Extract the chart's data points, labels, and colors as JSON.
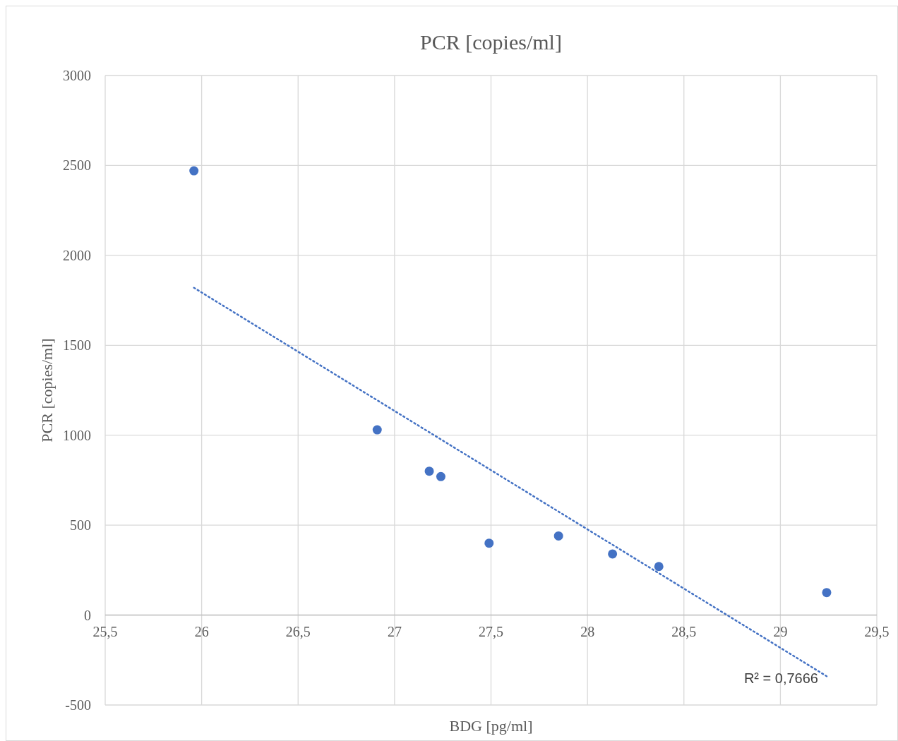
{
  "chart_data": {
    "type": "scatter",
    "title": "PCR [copies/ml]",
    "xlabel": "BDG [pg/ml]",
    "ylabel": "PCR [copies/ml]",
    "series": [
      {
        "color": "#4472c4",
        "marker": "circle",
        "x": [
          25.96,
          26.91,
          27.18,
          27.24,
          27.49,
          27.85,
          28.13,
          28.37,
          29.24
        ],
        "values": [
          2470,
          1030,
          800,
          770,
          400,
          440,
          340,
          270,
          125
        ]
      },
      {
        "type": "line",
        "color": "#4472c4",
        "line_style": "dotted",
        "x": [
          25.96,
          29.24
        ],
        "values": [
          1820,
          -340
        ]
      }
    ],
    "xlim": [
      25.5,
      29.5
    ],
    "ylim": [
      -500,
      3000
    ],
    "xticks": [
      {
        "value": 25.5,
        "label": "25,5"
      },
      26,
      {
        "value": 26.5,
        "label": "26,5"
      },
      27,
      {
        "value": 27.5,
        "label": "27,5"
      },
      28,
      {
        "value": 28.5,
        "label": "28,5"
      },
      29,
      {
        "value": 29.5,
        "label": "29,5"
      }
    ],
    "yticks": [
      -500,
      0,
      500,
      1000,
      1500,
      2000,
      2500,
      3000
    ],
    "grid": true,
    "annotations": [
      {
        "text": "R² = 0,7666",
        "x": 29.24,
        "y": -340
      }
    ]
  }
}
